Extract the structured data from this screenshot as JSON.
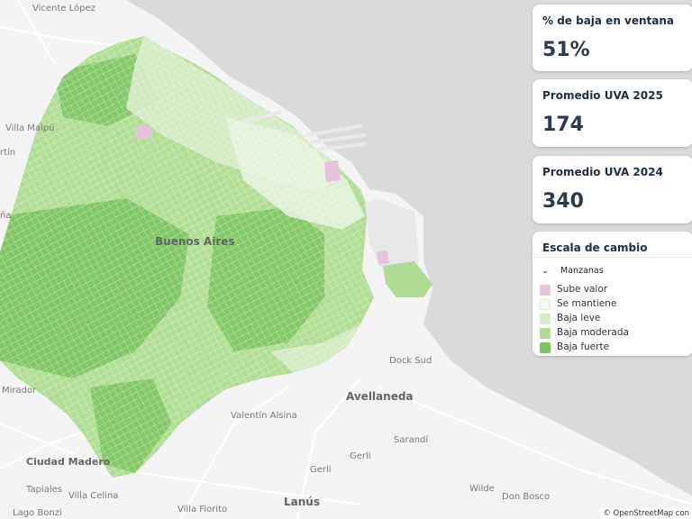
{
  "map": {
    "colors": {
      "water": "#dadada",
      "land": "#f3f3f3",
      "sube_valor": "#e6c4dc",
      "se_mantiene": "#f4f8f2",
      "baja_leve": "#d8ecc9",
      "baja_moderada": "#b0dc94",
      "baja_fuerte": "#7cc460"
    },
    "place_labels": [
      "Vicente López",
      "Villa Maipú",
      "rtín",
      "ña",
      "Buenos Aires",
      "Dock Sud",
      "Avellaneda",
      "Mirador",
      "Valentín Alsina",
      "Sarandí",
      "Gerli",
      "Ciudad Madero",
      "Tapiales",
      "Villa Celina",
      "Villa Fiorito",
      "Lanús",
      "Wilde",
      "Don Bosco",
      "Lago Bonzi"
    ],
    "attribution": "© OpenStreetMap con"
  },
  "cards": {
    "baja": {
      "title": "% de baja en ventana",
      "value": "51%"
    },
    "uva2025": {
      "title": "Promedio UVA 2025",
      "value": "174"
    },
    "uva2024": {
      "title": "Promedio UVA 2024",
      "value": "340"
    }
  },
  "legend": {
    "title": "Escala de cambio",
    "group_label": "Manzanas",
    "collapse_icon": "chevron-down-icon",
    "items": [
      {
        "label": "Sube valor",
        "color": "#e6c4dc"
      },
      {
        "label": "Se mantiene",
        "color": "#f4f8f2"
      },
      {
        "label": "Baja leve",
        "color": "#d8ecc9"
      },
      {
        "label": "Baja moderada",
        "color": "#b0dc94"
      },
      {
        "label": "Baja fuerte",
        "color": "#7cc460"
      }
    ]
  }
}
